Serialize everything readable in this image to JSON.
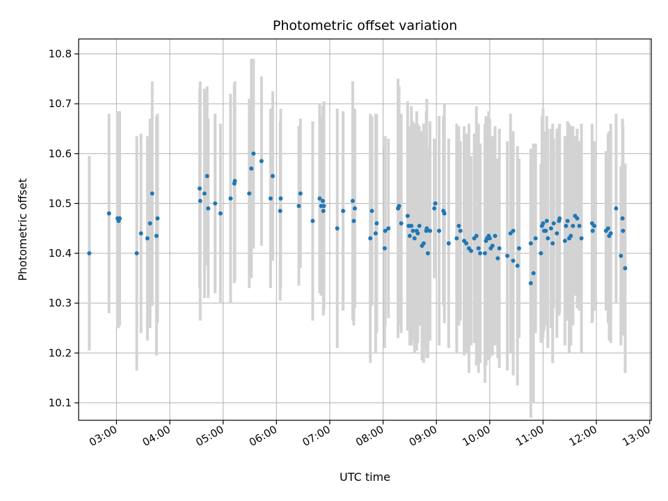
{
  "chart_data": {
    "type": "scatter",
    "title": "Photometric offset variation",
    "xlabel": "UTC time",
    "ylabel": "Photometric offset",
    "x_unit": "hours UTC",
    "xlim": [
      2.29,
      13.03
    ],
    "ylim": [
      10.065,
      10.83
    ],
    "grid": true,
    "legend": "none",
    "x_ticks": [
      {
        "value": 3,
        "label": "03:00"
      },
      {
        "value": 4,
        "label": "04:00"
      },
      {
        "value": 5,
        "label": "05:00"
      },
      {
        "value": 6,
        "label": "06:00"
      },
      {
        "value": 7,
        "label": "07:00"
      },
      {
        "value": 8,
        "label": "08:00"
      },
      {
        "value": 9,
        "label": "09:00"
      },
      {
        "value": 10,
        "label": "10:00"
      },
      {
        "value": 11,
        "label": "11:00"
      },
      {
        "value": 12,
        "label": "12:00"
      },
      {
        "value": 13,
        "label": "13:00"
      }
    ],
    "y_ticks": [
      {
        "value": 10.1,
        "label": "10.1"
      },
      {
        "value": 10.2,
        "label": "10.2"
      },
      {
        "value": 10.3,
        "label": "10.3"
      },
      {
        "value": 10.4,
        "label": "10.4"
      },
      {
        "value": 10.5,
        "label": "10.5"
      },
      {
        "value": 10.6,
        "label": "10.6"
      },
      {
        "value": 10.7,
        "label": "10.7"
      },
      {
        "value": 10.8,
        "label": "10.8"
      }
    ],
    "marker_color": "#1f77b4",
    "errorbar_color": "#d3d3d3",
    "series": [
      {
        "name": "offset",
        "x": [
          2.49,
          2.86,
          3.02,
          3.04,
          3.06,
          3.38,
          3.46,
          3.58,
          3.63,
          3.67,
          3.75,
          3.77,
          4.56,
          4.57,
          4.65,
          4.7,
          4.72,
          4.85,
          4.95,
          5.14,
          5.21,
          5.22,
          5.49,
          5.53,
          5.57,
          5.72,
          5.89,
          5.93,
          6.07,
          6.08,
          6.42,
          6.45,
          6.68,
          6.81,
          6.84,
          6.87,
          6.88,
          6.89,
          7.14,
          7.25,
          7.43,
          7.45,
          7.47,
          7.76,
          7.79,
          7.86,
          7.88,
          8.03,
          8.04,
          8.1,
          8.28,
          8.3,
          8.34,
          8.46,
          8.48,
          8.5,
          8.53,
          8.56,
          8.59,
          8.63,
          8.65,
          8.68,
          8.73,
          8.76,
          8.81,
          8.82,
          8.84,
          8.88,
          8.96,
          8.98,
          9.05,
          9.13,
          9.15,
          9.23,
          9.38,
          9.42,
          9.45,
          9.52,
          9.56,
          9.61,
          9.65,
          9.71,
          9.75,
          9.79,
          9.82,
          9.91,
          9.93,
          9.95,
          9.98,
          10.0,
          10.02,
          10.05,
          10.1,
          10.15,
          10.18,
          10.33,
          10.39,
          10.44,
          10.44,
          10.52,
          10.55,
          10.77,
          10.77,
          10.82,
          10.86,
          10.96,
          10.98,
          11.0,
          11.02,
          11.05,
          11.07,
          11.09,
          11.15,
          11.18,
          11.2,
          11.26,
          11.3,
          11.31,
          11.41,
          11.43,
          11.46,
          11.49,
          11.52,
          11.56,
          11.6,
          11.64,
          11.68,
          11.72,
          11.92,
          11.93,
          11.96,
          12.18,
          12.22,
          12.24,
          12.27,
          12.37,
          12.46,
          12.49,
          12.5,
          12.54
        ],
        "y": [
          10.4,
          10.48,
          10.47,
          10.465,
          10.47,
          10.4,
          10.44,
          10.43,
          10.46,
          10.52,
          10.435,
          10.47,
          10.53,
          10.505,
          10.52,
          10.555,
          10.49,
          10.5,
          10.48,
          10.51,
          10.54,
          10.545,
          10.52,
          10.57,
          10.6,
          10.585,
          10.51,
          10.555,
          10.485,
          10.51,
          10.495,
          10.52,
          10.465,
          10.51,
          10.495,
          10.505,
          10.485,
          10.495,
          10.45,
          10.485,
          10.505,
          10.465,
          10.49,
          10.43,
          10.485,
          10.44,
          10.46,
          10.41,
          10.445,
          10.45,
          10.49,
          10.495,
          10.46,
          10.475,
          10.455,
          10.435,
          10.455,
          10.445,
          10.43,
          10.445,
          10.44,
          10.455,
          10.415,
          10.42,
          10.445,
          10.45,
          10.4,
          10.445,
          10.49,
          10.5,
          10.445,
          10.485,
          10.48,
          10.42,
          10.43,
          10.455,
          10.445,
          10.425,
          10.42,
          10.41,
          10.405,
          10.43,
          10.435,
          10.41,
          10.4,
          10.4,
          10.425,
          10.43,
          10.435,
          10.43,
          10.41,
          10.415,
          10.435,
          10.39,
          10.41,
          10.395,
          10.44,
          10.445,
          10.385,
          10.375,
          10.41,
          10.42,
          10.34,
          10.36,
          10.43,
          10.4,
          10.455,
          10.46,
          10.445,
          10.445,
          10.465,
          10.43,
          10.45,
          10.42,
          10.46,
          10.44,
          10.465,
          10.47,
          10.425,
          10.455,
          10.465,
          10.43,
          10.435,
          10.455,
          10.475,
          10.47,
          10.455,
          10.43,
          10.46,
          10.445,
          10.455,
          10.445,
          10.45,
          10.435,
          10.44,
          10.49,
          10.395,
          10.47,
          10.445,
          10.37
        ],
        "error": [
          0.195,
          0.2,
          0.215,
          0.215,
          0.215,
          0.235,
          0.2,
          0.205,
          0.21,
          0.225,
          0.24,
          0.21,
          0.2,
          0.24,
          0.21,
          0.18,
          0.18,
          0.18,
          0.18,
          0.21,
          0.2,
          0.2,
          0.19,
          0.22,
          0.19,
          0.17,
          0.18,
          0.17,
          0.18,
          0.18,
          0.16,
          0.15,
          0.2,
          0.19,
          0.18,
          0.19,
          0.21,
          0.21,
          0.24,
          0.2,
          0.24,
          0.21,
          0.2,
          0.25,
          0.19,
          0.24,
          0.22,
          0.2,
          0.19,
          0.18,
          0.26,
          0.24,
          0.22,
          0.23,
          0.19,
          0.22,
          0.24,
          0.22,
          0.23,
          0.24,
          0.22,
          0.2,
          0.23,
          0.24,
          0.24,
          0.26,
          0.21,
          0.22,
          0.14,
          0.13,
          0.23,
          0.19,
          0.22,
          0.21,
          0.23,
          0.2,
          0.18,
          0.23,
          0.22,
          0.25,
          0.19,
          0.21,
          0.26,
          0.25,
          0.22,
          0.26,
          0.25,
          0.23,
          0.25,
          0.24,
          0.2,
          0.22,
          0.22,
          0.2,
          0.24,
          0.23,
          0.24,
          0.2,
          0.23,
          0.24,
          0.18,
          0.16,
          0.27,
          0.26,
          0.19,
          0.18,
          0.22,
          0.23,
          0.2,
          0.18,
          0.21,
          0.22,
          0.2,
          0.24,
          0.17,
          0.21,
          0.19,
          0.19,
          0.21,
          0.18,
          0.2,
          0.23,
          0.22,
          0.2,
          0.16,
          0.18,
          0.17,
          0.23,
          0.2,
          0.18,
          0.17,
          0.16,
          0.19,
          0.21,
          0.22,
          0.19,
          0.18,
          0.2,
          0.21,
          0.21
        ]
      }
    ]
  }
}
